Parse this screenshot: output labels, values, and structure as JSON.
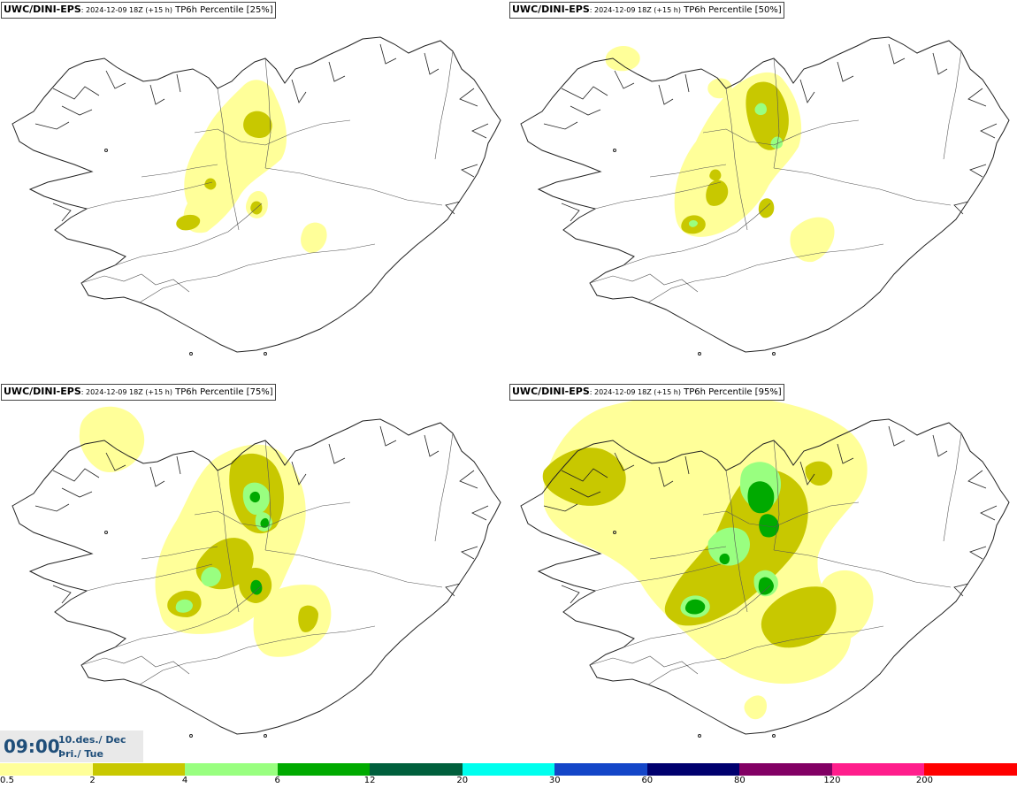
{
  "panels": [
    {
      "model": "UWC/DINI-EPS",
      "run": ": 2024-12-09 18Z (+15 h)",
      "product": " TP6h Percentile [25%]",
      "level": 0
    },
    {
      "model": "UWC/DINI-EPS",
      "run": ": 2024-12-09 18Z (+15 h)",
      "product": " TP6h Percentile [50%]",
      "level": 1
    },
    {
      "model": "UWC/DINI-EPS",
      "run": ": 2024-12-09 18Z (+15 h)",
      "product": " TP6h Percentile [75%]",
      "level": 2
    },
    {
      "model": "UWC/DINI-EPS",
      "run": ": 2024-12-09 18Z (+15 h)",
      "product": " TP6h Percentile [95%]",
      "level": 3
    }
  ],
  "time": {
    "clock": "09:00",
    "date": "10.des./ Dec",
    "weekday": "Þri./ Tue"
  },
  "legend": {
    "labels": [
      "0.5",
      "2",
      "4",
      "6",
      "12",
      "20",
      "30",
      "60",
      "80",
      "120",
      "200"
    ],
    "colors": [
      "#ffff99",
      "#c8c800",
      "#99ff80",
      "#00aa00",
      "#005f3c",
      "#00ffee",
      "#1446c8",
      "#00006e",
      "#820064",
      "#ff1e8c",
      "#ff0000"
    ]
  },
  "colors": {
    "light": "#ffff99",
    "olive": "#c8c800",
    "lightgreen": "#99ff80",
    "green": "#00aa00",
    "outline": "#222222",
    "title_text": "#1f4e79"
  }
}
